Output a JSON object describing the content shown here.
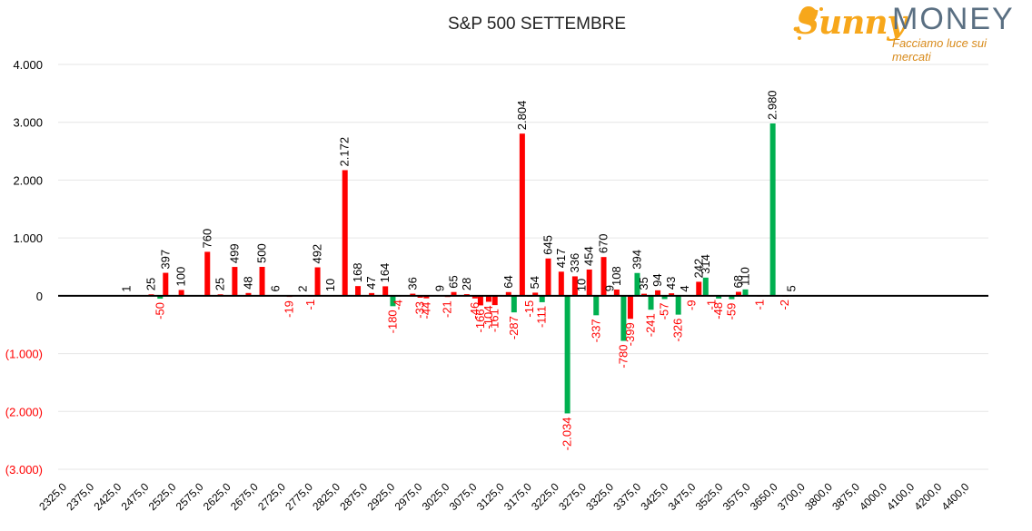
{
  "logo": {
    "brand_first": "Sunny",
    "brand_second": "MONEY",
    "tagline": "Facciamo luce sui mercati"
  },
  "colors": {
    "calls": "#ff0000",
    "puts": "#00b050",
    "positive_label": "#000000",
    "negative_label": "#ff0000",
    "zero_line": "#000000"
  },
  "chart_data": {
    "type": "bar",
    "title": "S&P 500 SETTEMBRE",
    "xlabel": "",
    "ylabel": "",
    "ylim": [
      -3000,
      4000
    ],
    "yticks": [
      4000,
      3000,
      2000,
      1000,
      0,
      -1000,
      -2000,
      -3000
    ],
    "ytick_labels": [
      "4.000",
      "3.000",
      "2.000",
      "1.000",
      "0",
      "(1.000)",
      "(2.000)",
      "(3.000)"
    ],
    "grid": true,
    "legend": "none",
    "categories": [
      "2325,0",
      "2375,0",
      "2425,0",
      "2475,0",
      "2525,0",
      "2575,0",
      "2625,0",
      "2675,0",
      "2725,0",
      "2775,0",
      "2825,0",
      "2875,0",
      "2925,0",
      "2975,0",
      "3025,0",
      "3075,0",
      "3125,0",
      "3175,0",
      "3225,0",
      "3275,0",
      "3325,0",
      "3375,0",
      "3425,0",
      "3475,0",
      "3525,0",
      "3575,0",
      "3650,0",
      "3700,0",
      "3800,0",
      "3875,0",
      "4000,0",
      "4100,0",
      "4200,0",
      "4400,0"
    ],
    "bars": [
      {
        "pos": 5.0,
        "value": 1,
        "label": "1",
        "series": "red"
      },
      {
        "pos": 6.8,
        "value": 25,
        "label": "25",
        "series": "red"
      },
      {
        "pos": 7.45,
        "value": -50,
        "label": "-50",
        "series": "green"
      },
      {
        "pos": 7.85,
        "value": 397,
        "label": "397",
        "series": "red"
      },
      {
        "pos": 9.0,
        "value": 100,
        "label": "100",
        "series": "red"
      },
      {
        "pos": 10.9,
        "value": 760,
        "label": "760",
        "series": "red"
      },
      {
        "pos": 11.85,
        "value": 25,
        "label": "25",
        "series": "red"
      },
      {
        "pos": 12.9,
        "value": 499,
        "label": "499",
        "series": "red"
      },
      {
        "pos": 13.9,
        "value": 48,
        "label": "48",
        "series": "red"
      },
      {
        "pos": 14.9,
        "value": 500,
        "label": "500",
        "series": "red"
      },
      {
        "pos": 15.9,
        "value": 6,
        "label": "6",
        "series": "red"
      },
      {
        "pos": 16.9,
        "value": -19,
        "label": "-19",
        "series": "red"
      },
      {
        "pos": 17.9,
        "value": 2,
        "label": "2",
        "series": "red"
      },
      {
        "pos": 18.45,
        "value": -1,
        "label": "-1",
        "series": "red"
      },
      {
        "pos": 18.95,
        "value": 492,
        "label": "492",
        "series": "red"
      },
      {
        "pos": 19.9,
        "value": 10,
        "label": "10",
        "series": "red"
      },
      {
        "pos": 20.95,
        "value": 2172,
        "label": "2.172",
        "series": "red"
      },
      {
        "pos": 21.9,
        "value": 168,
        "label": "168",
        "series": "red"
      },
      {
        "pos": 22.9,
        "value": 47,
        "label": "47",
        "series": "red"
      },
      {
        "pos": 23.9,
        "value": 164,
        "label": "164",
        "series": "red"
      },
      {
        "pos": 24.45,
        "value": -180,
        "label": "-180",
        "series": "green"
      },
      {
        "pos": 24.85,
        "value": -4,
        "label": "-4",
        "series": "green"
      },
      {
        "pos": 25.9,
        "value": 36,
        "label": "36",
        "series": "red"
      },
      {
        "pos": 26.45,
        "value": -33,
        "label": "-33",
        "series": "red"
      },
      {
        "pos": 26.9,
        "value": -44,
        "label": "-44",
        "series": "red"
      },
      {
        "pos": 27.9,
        "value": 9,
        "label": "9",
        "series": "red"
      },
      {
        "pos": 28.45,
        "value": -21,
        "label": "-21",
        "series": "red"
      },
      {
        "pos": 28.9,
        "value": 65,
        "label": "65",
        "series": "red"
      },
      {
        "pos": 29.85,
        "value": 28,
        "label": "28",
        "series": "red"
      },
      {
        "pos": 30.45,
        "value": -46,
        "label": "-46",
        "series": "red"
      },
      {
        "pos": 30.85,
        "value": -166,
        "label": "-166",
        "series": "red"
      },
      {
        "pos": 31.45,
        "value": -104,
        "label": "-104",
        "series": "red"
      },
      {
        "pos": 31.9,
        "value": -161,
        "label": "-161",
        "series": "red"
      },
      {
        "pos": 32.9,
        "value": 64,
        "label": "64",
        "series": "red"
      },
      {
        "pos": 33.3,
        "value": -287,
        "label": "-287",
        "series": "green"
      },
      {
        "pos": 33.9,
        "value": 2804,
        "label": "2.804",
        "series": "red"
      },
      {
        "pos": 34.45,
        "value": -15,
        "label": "-15",
        "series": "green"
      },
      {
        "pos": 34.85,
        "value": 54,
        "label": "54",
        "series": "red"
      },
      {
        "pos": 35.35,
        "value": -111,
        "label": "-111",
        "series": "green"
      },
      {
        "pos": 35.8,
        "value": 645,
        "label": "645",
        "series": "red"
      },
      {
        "pos": 36.75,
        "value": 417,
        "label": "417",
        "series": "red"
      },
      {
        "pos": 37.2,
        "value": -2034,
        "label": "-2.034",
        "series": "green"
      },
      {
        "pos": 37.75,
        "value": 336,
        "label": "336",
        "series": "red"
      },
      {
        "pos": 38.25,
        "value": 10,
        "label": "10",
        "series": "red"
      },
      {
        "pos": 38.8,
        "value": 454,
        "label": "454",
        "series": "red"
      },
      {
        "pos": 39.3,
        "value": -337,
        "label": "-337",
        "series": "green"
      },
      {
        "pos": 39.85,
        "value": 670,
        "label": "670",
        "series": "red"
      },
      {
        "pos": 40.3,
        "value": 9,
        "label": "9",
        "series": "red"
      },
      {
        "pos": 40.8,
        "value": 108,
        "label": "108",
        "series": "red"
      },
      {
        "pos": 41.3,
        "value": -780,
        "label": "-780",
        "series": "green"
      },
      {
        "pos": 41.8,
        "value": -399,
        "label": "-399",
        "series": "red"
      },
      {
        "pos": 42.3,
        "value": 394,
        "label": "394",
        "series": "green"
      },
      {
        "pos": 42.8,
        "value": 35,
        "label": "35",
        "series": "red"
      },
      {
        "pos": 43.3,
        "value": -241,
        "label": "-241",
        "series": "green"
      },
      {
        "pos": 43.8,
        "value": 94,
        "label": "94",
        "series": "red"
      },
      {
        "pos": 44.3,
        "value": -57,
        "label": "-57",
        "series": "green"
      },
      {
        "pos": 44.8,
        "value": 43,
        "label": "43",
        "series": "red"
      },
      {
        "pos": 45.3,
        "value": -326,
        "label": "-326",
        "series": "green"
      },
      {
        "pos": 45.8,
        "value": 4,
        "label": "4",
        "series": "red"
      },
      {
        "pos": 46.3,
        "value": -9,
        "label": "-9",
        "series": "red"
      },
      {
        "pos": 46.8,
        "value": 242,
        "label": "242",
        "series": "red"
      },
      {
        "pos": 47.3,
        "value": 314,
        "label": "314",
        "series": "green"
      },
      {
        "pos": 47.75,
        "value": -1,
        "label": "-1",
        "series": "red"
      },
      {
        "pos": 48.25,
        "value": -48,
        "label": "-48",
        "series": "green"
      },
      {
        "pos": 49.2,
        "value": -59,
        "label": "-59",
        "series": "green"
      },
      {
        "pos": 49.7,
        "value": 68,
        "label": "68",
        "series": "red"
      },
      {
        "pos": 50.2,
        "value": 110,
        "label": "110",
        "series": "green"
      },
      {
        "pos": 51.25,
        "value": -1,
        "label": "-1",
        "series": "red"
      },
      {
        "pos": 52.2,
        "value": 2980,
        "label": "2.980",
        "series": "green"
      },
      {
        "pos": 53.1,
        "value": -2,
        "label": "-2",
        "series": "red"
      },
      {
        "pos": 53.6,
        "value": 5,
        "label": "5",
        "series": "red"
      }
    ]
  }
}
